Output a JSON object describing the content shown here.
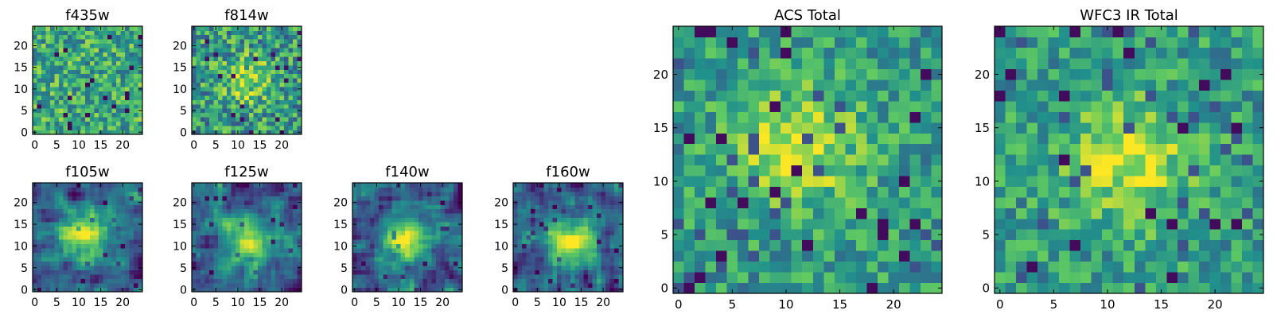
{
  "figure": {
    "colormap": "viridis",
    "background": "#ffffff",
    "colormap_stops": [
      "#440154",
      "#3b528b",
      "#21918c",
      "#5ec962",
      "#fde725"
    ]
  },
  "chart_data": [
    {
      "type": "heatmap",
      "title": "f435w",
      "grid_size": 25,
      "x_ticks": [
        0,
        5,
        10,
        15,
        20
      ],
      "y_ticks": [
        0,
        5,
        10,
        15,
        20
      ],
      "xlim": [
        -0.5,
        24.5
      ],
      "ylim": [
        -0.5,
        24.5
      ],
      "pattern": "noise",
      "center": [
        12,
        12
      ],
      "seed": 11
    },
    {
      "type": "heatmap",
      "title": "f814w",
      "grid_size": 25,
      "x_ticks": [
        0,
        5,
        10,
        15,
        20
      ],
      "y_ticks": [
        0,
        5,
        10,
        15,
        20
      ],
      "xlim": [
        -0.5,
        24.5
      ],
      "ylim": [
        -0.5,
        24.5
      ],
      "pattern": "noise_weak_source",
      "center": [
        12,
        12
      ],
      "seed": 23
    },
    {
      "type": "heatmap",
      "title": "f105w",
      "grid_size": 25,
      "x_ticks": [
        0,
        5,
        10,
        15,
        20
      ],
      "y_ticks": [
        0,
        5,
        10,
        15,
        20
      ],
      "xlim": [
        -0.5,
        24.5
      ],
      "ylim": [
        -0.5,
        24.5
      ],
      "pattern": "smooth_source",
      "center": [
        11,
        12
      ],
      "seed": 37
    },
    {
      "type": "heatmap",
      "title": "f125w",
      "grid_size": 25,
      "x_ticks": [
        0,
        5,
        10,
        15,
        20
      ],
      "y_ticks": [
        0,
        5,
        10,
        15,
        20
      ],
      "xlim": [
        -0.5,
        24.5
      ],
      "ylim": [
        -0.5,
        24.5
      ],
      "pattern": "smooth_source",
      "center": [
        13,
        11
      ],
      "seed": 41
    },
    {
      "type": "heatmap",
      "title": "f140w",
      "grid_size": 25,
      "x_ticks": [
        0,
        5,
        10,
        15,
        20
      ],
      "y_ticks": [
        0,
        5,
        10,
        15,
        20
      ],
      "xlim": [
        -0.5,
        24.5
      ],
      "ylim": [
        -0.5,
        24.5
      ],
      "pattern": "smooth_source",
      "center": [
        12,
        11
      ],
      "seed": 53
    },
    {
      "type": "heatmap",
      "title": "f160w",
      "grid_size": 25,
      "x_ticks": [
        0,
        5,
        10,
        15,
        20
      ],
      "y_ticks": [
        0,
        5,
        10,
        15,
        20
      ],
      "xlim": [
        -0.5,
        24.5
      ],
      "ylim": [
        -0.5,
        24.5
      ],
      "pattern": "smooth_source",
      "center": [
        13,
        11
      ],
      "seed": 67
    },
    {
      "type": "heatmap",
      "title": "ACS Total",
      "grid_size": 25,
      "x_ticks": [
        0,
        5,
        10,
        15,
        20
      ],
      "y_ticks": [
        0,
        5,
        10,
        15,
        20
      ],
      "xlim": [
        -0.5,
        24.5
      ],
      "ylim": [
        -0.5,
        24.5
      ],
      "pattern": "blocky_source",
      "center": [
        11,
        13
      ],
      "seed": 79
    },
    {
      "type": "heatmap",
      "title": "WFC3 IR Total",
      "grid_size": 25,
      "x_ticks": [
        0,
        5,
        10,
        15,
        20
      ],
      "y_ticks": [
        0,
        5,
        10,
        15,
        20
      ],
      "xlim": [
        -0.5,
        24.5
      ],
      "ylim": [
        -0.5,
        24.5
      ],
      "pattern": "blocky_source",
      "center": [
        12,
        12
      ],
      "seed": 97
    }
  ]
}
